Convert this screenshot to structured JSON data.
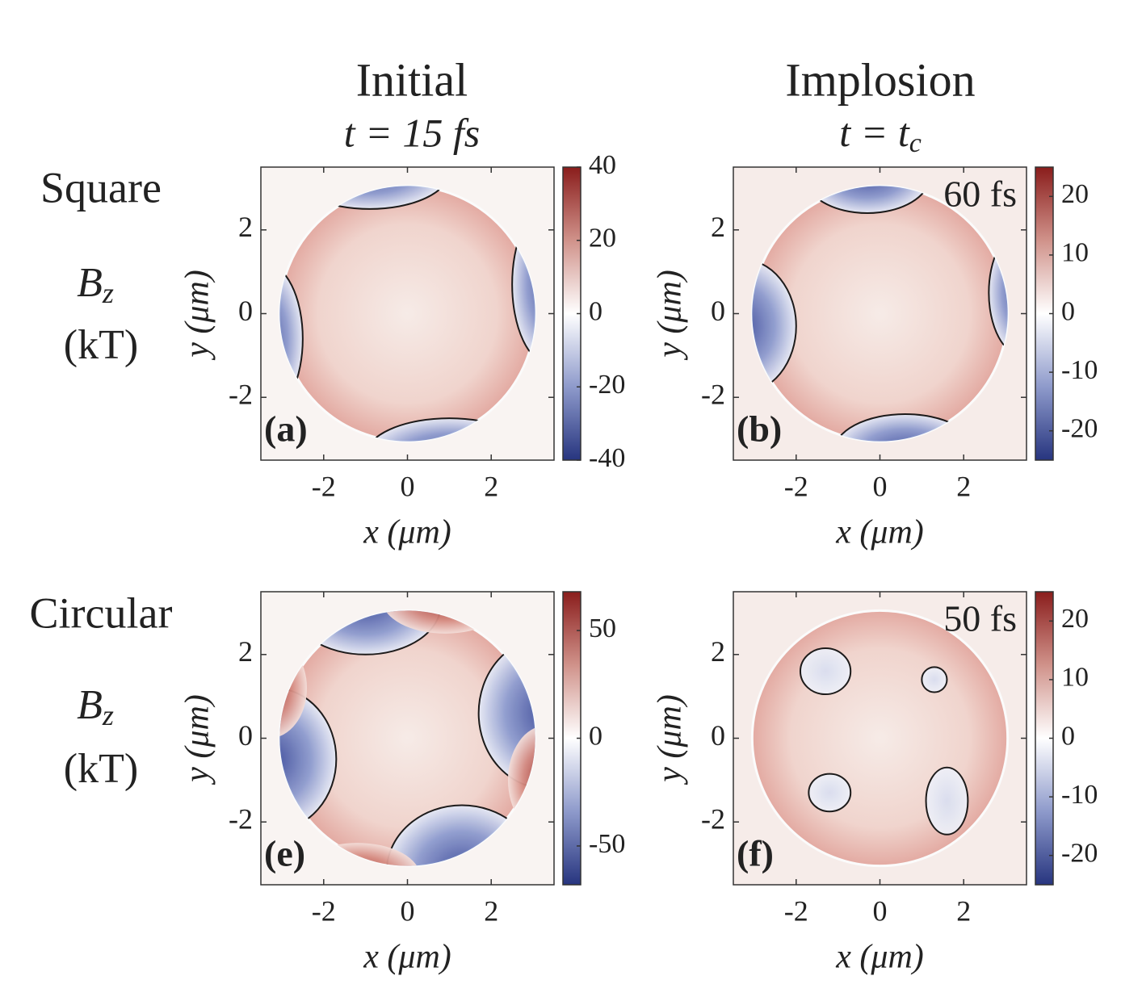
{
  "columns": [
    {
      "title": "Initial",
      "subtitle": "t = 15 fs"
    },
    {
      "title": "Implosion",
      "subtitle": "t = t",
      "subtitle_sub": "c"
    }
  ],
  "rows": [
    {
      "label": "Square",
      "quantity": "B",
      "quantity_sub": "z",
      "unit": "(kT)"
    },
    {
      "label": "Circular",
      "quantity": "B",
      "quantity_sub": "z",
      "unit": "(kT)"
    }
  ],
  "chart_data": [
    {
      "type": "heatmap",
      "panel_label": "(a)",
      "xlabel": "x (μm)",
      "ylabel": "y (μm)",
      "xlim": [
        -3.5,
        3.5
      ],
      "ylim": [
        -3.5,
        3.5
      ],
      "xticks": [
        -2,
        0,
        2
      ],
      "yticks": [
        -2,
        0,
        2
      ],
      "clim": [
        -40,
        40
      ],
      "cticks": [
        -40,
        -20,
        0,
        20,
        40
      ]
    },
    {
      "type": "heatmap",
      "panel_label": "(b)",
      "annotation": "60 fs",
      "xlabel": "x (μm)",
      "ylabel": "y (μm)",
      "xlim": [
        -3.5,
        3.5
      ],
      "ylim": [
        -3.5,
        3.5
      ],
      "xticks": [
        -2,
        0,
        2
      ],
      "yticks": [
        -2,
        0,
        2
      ],
      "clim": [
        -25,
        25
      ],
      "cticks": [
        -20,
        -10,
        0,
        10,
        20
      ]
    },
    {
      "type": "heatmap",
      "panel_label": "(e)",
      "xlabel": "x (μm)",
      "ylabel": "y (μm)",
      "xlim": [
        -3.5,
        3.5
      ],
      "ylim": [
        -3.5,
        3.5
      ],
      "xticks": [
        -2,
        0,
        2
      ],
      "yticks": [
        -2,
        0,
        2
      ],
      "clim": [
        -68,
        68
      ],
      "cticks": [
        -50,
        0,
        50
      ]
    },
    {
      "type": "heatmap",
      "panel_label": "(f)",
      "annotation": "50 fs",
      "xlabel": "x (μm)",
      "ylabel": "y (μm)",
      "xlim": [
        -3.5,
        3.5
      ],
      "ylim": [
        -3.5,
        3.5
      ],
      "xticks": [
        -2,
        0,
        2
      ],
      "yticks": [
        -2,
        0,
        2
      ],
      "clim": [
        -25,
        25
      ],
      "cticks": [
        -20,
        -10,
        0,
        10,
        20
      ]
    }
  ]
}
